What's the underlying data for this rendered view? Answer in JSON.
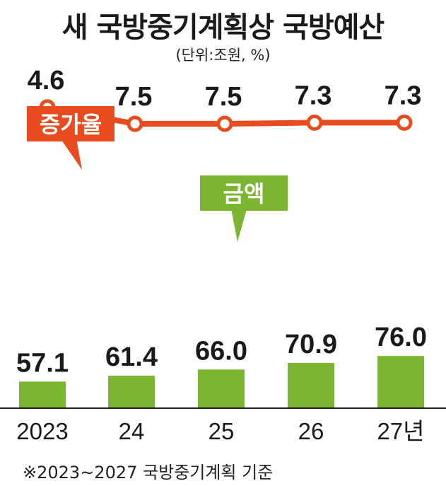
{
  "title": "새 국방중기계획상 국방예산",
  "subtitle": "(단위:조원, %)",
  "footnote": "※2023~2027 국방중기계획 기준",
  "colors": {
    "bar": "#7cb531",
    "line": "#e84c1e",
    "text": "#1a1a1a"
  },
  "chart_data": {
    "type": "bar",
    "categories": [
      "2023",
      "24",
      "25",
      "26",
      "27년"
    ],
    "series": [
      {
        "name": "금액",
        "type": "bar",
        "values": [
          57.1,
          61.4,
          66.0,
          70.9,
          76.0
        ],
        "labels": [
          "57.1",
          "61.4",
          "66.0",
          "70.9",
          "76.0"
        ]
      },
      {
        "name": "증가율",
        "type": "line",
        "values": [
          4.6,
          7.5,
          7.5,
          7.3,
          7.3
        ],
        "labels": [
          "4.6",
          "7.5",
          "7.5",
          "7.3",
          "7.3"
        ]
      }
    ],
    "grid": false
  }
}
